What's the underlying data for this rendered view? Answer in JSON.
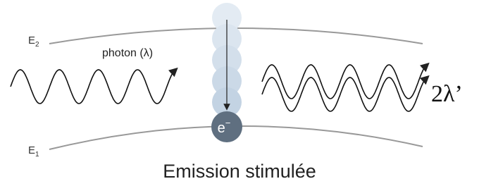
{
  "levels": [
    {
      "label": "E",
      "subscript": "2"
    },
    {
      "label": "E",
      "subscript": "1"
    }
  ],
  "photon_label": "photon (λ)",
  "electron": {
    "label": "e",
    "superscript": "−"
  },
  "output_label": "2λ’",
  "caption": "Emission stimulée"
}
